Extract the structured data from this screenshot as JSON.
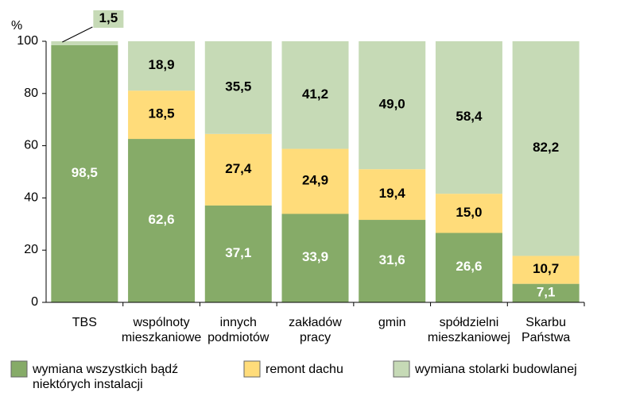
{
  "chart_data": {
    "type": "stacked_bar",
    "y_label": "%",
    "categories": [
      "TBS",
      "wspólnoty\nmieszkaniowe",
      "innych\npodmiotów",
      "zakładów\npracy",
      "gmin",
      "spółdzielni\nmieszkaniowej",
      "Skarbu\nPaństwa"
    ],
    "series": [
      {
        "name": "wymiana wszystkich bądź\nniektórych instalacji",
        "color": "#86ab68",
        "values": [
          98.5,
          62.6,
          37.1,
          33.9,
          31.6,
          26.6,
          7.1
        ],
        "value_labels": [
          "98,5",
          "62,6",
          "37,1",
          "33,9",
          "31,6",
          "26,6",
          "7,1"
        ]
      },
      {
        "name": "remont dachu",
        "color": "#ffdc7a",
        "values": [
          null,
          18.5,
          27.4,
          24.9,
          19.4,
          15.0,
          10.7
        ],
        "value_labels": [
          null,
          "18,5",
          "27,4",
          "24,9",
          "19,4",
          "15,0",
          "10,7"
        ]
      },
      {
        "name": "wymiana stolarki budowlanej",
        "color": "#c6dab6",
        "values": [
          1.5,
          18.9,
          35.5,
          41.2,
          49.0,
          58.4,
          82.2
        ],
        "value_labels": [
          "1,5",
          "18,9",
          "35,5",
          "41,2",
          "49,0",
          "58,4",
          "82,2"
        ]
      }
    ],
    "ylim": [
      0,
      100
    ],
    "yticks": [
      0,
      20,
      40,
      60,
      80,
      100
    ],
    "grid": false
  }
}
